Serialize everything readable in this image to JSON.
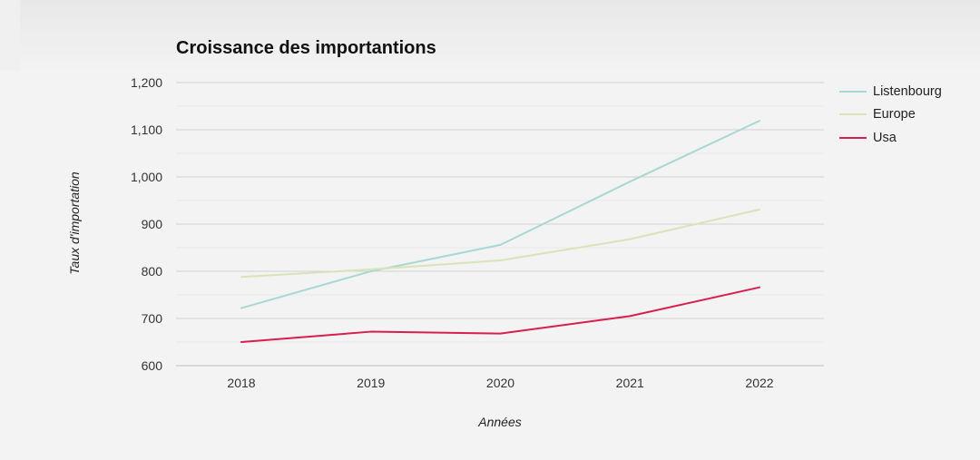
{
  "chart_data": {
    "type": "line",
    "title": "Croissance des importantions",
    "xlabel": "Années",
    "ylabel": "Taux d'importation",
    "x": [
      "2018",
      "2019",
      "2020",
      "2021",
      "2022"
    ],
    "ylim": [
      600,
      1200
    ],
    "yticks": [
      600,
      700,
      800,
      900,
      1000,
      1100,
      1200
    ],
    "ytick_labels": [
      "600",
      "700",
      "800",
      "900",
      "1,000",
      "1,100",
      "1,200"
    ],
    "grid": true,
    "legend_position": "right",
    "series": [
      {
        "name": "Listenbourg",
        "color": "#a8d8d4",
        "values": [
          722,
          800,
          856,
          990,
          1119
        ]
      },
      {
        "name": "Europe",
        "color": "#d8e4b8",
        "values": [
          788,
          804,
          823,
          868,
          931
        ]
      },
      {
        "name": "Usa",
        "color": "#d81e4e",
        "values": [
          650,
          672,
          668,
          705,
          766
        ]
      }
    ]
  }
}
